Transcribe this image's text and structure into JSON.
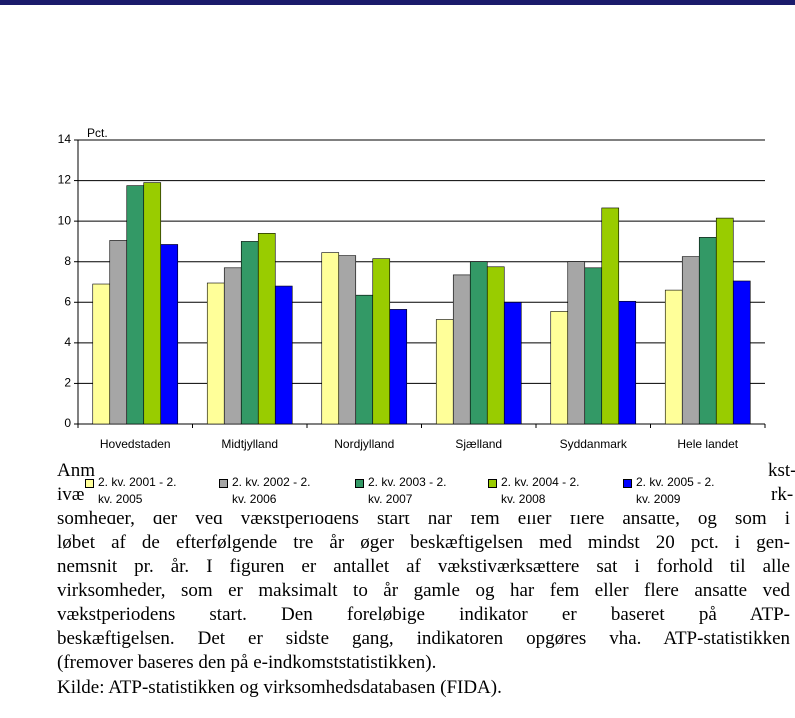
{
  "document": {
    "fragments": [
      "Anm",
      "kst-",
      "ivæ",
      "rk-"
    ],
    "lines": [
      "somheder, der ved vækstperiodens start har fem eller flere ansatte, og som i",
      "løbet af de efterfølgende tre år øger beskæftigelsen med mindst 20 pct. i gen-",
      "nemsnit pr. år. I figuren er antallet af vækstiværksættere sat i forhold til alle",
      "virksomheder, som er maksimalt to år gamle og har fem eller flere ansatte ved",
      "vækstperiodens start. Den foreløbige indikator er baseret på ATP-",
      "beskæftigelsen. Det er sidste gang, indikatoren opgøres vha. ATP-statistikken",
      "(fremover baseres den på e-indkomststatistikken).",
      "Kilde: ATP-statistikken og virksomhedsdatabasen (FIDA)."
    ]
  },
  "chart_data": {
    "type": "bar",
    "y_label": "Pct.",
    "categories": [
      "Hovedstaden",
      "Midtjylland",
      "Nordjylland",
      "Sjælland",
      "Syddanmark",
      "Hele landet"
    ],
    "series": [
      {
        "name": "2. kv. 2001 - 2. kv. 2005",
        "color": "#ffff99",
        "values": [
          6.9,
          6.95,
          8.45,
          5.15,
          5.55,
          6.6
        ]
      },
      {
        "name": "2. kv. 2002 - 2. kv. 2006",
        "color": "#a6a6a6",
        "values": [
          9.05,
          7.7,
          8.3,
          7.35,
          8.0,
          8.25
        ]
      },
      {
        "name": "2. kv. 2003 - 2. kv. 2007",
        "color": "#339966",
        "values": [
          11.75,
          9.0,
          6.35,
          8.0,
          7.7,
          9.2
        ]
      },
      {
        "name": "2. kv. 2004 - 2. kv. 2008",
        "color": "#99cc00",
        "values": [
          11.9,
          9.4,
          8.15,
          7.75,
          10.65,
          10.15
        ]
      },
      {
        "name": "2. kv. 2005 - 2. kv. 2009",
        "color": "#0000ff",
        "values": [
          8.85,
          6.8,
          5.65,
          6.0,
          6.05,
          7.05
        ]
      }
    ],
    "ylim": [
      0,
      14
    ],
    "yticks": [
      0,
      2,
      4,
      6,
      8,
      10,
      12,
      14
    ],
    "grid": true
  }
}
